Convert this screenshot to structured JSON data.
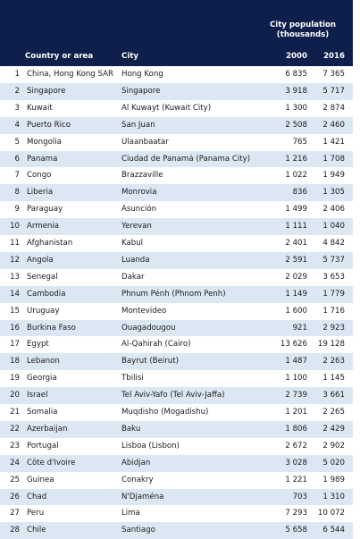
{
  "table": {
    "group_label": "City population (thousands)",
    "columns": [
      "Country or area",
      "City",
      "2000",
      "2016"
    ],
    "rows": [
      [
        "1",
        "China, Hong Kong SAR",
        "Hong Kong",
        "6 835",
        "7 365"
      ],
      [
        "2",
        "Singapore",
        "Singapore",
        "3 918",
        "5 717"
      ],
      [
        "3",
        "Kuwait",
        "Al Kuwayt (Kuwait City)",
        "1 300",
        "2 874"
      ],
      [
        "4",
        "Puerto Rico",
        "San Juan",
        "2 508",
        "2 460"
      ],
      [
        "5",
        "Mongolia",
        "Ulaanbaatar",
        "765",
        "1 421"
      ],
      [
        "6",
        "Panama",
        "Ciudad de Panamá (Panama City)",
        "1 216",
        "1 708"
      ],
      [
        "7",
        "Congo",
        "Brazzaville",
        "1 022",
        "1 949"
      ],
      [
        "8",
        "Liberia",
        "Monrovia",
        "836",
        "1 305"
      ],
      [
        "9",
        "Paraguay",
        "Asunción",
        "1 499",
        "2 406"
      ],
      [
        "10",
        "Armenia",
        "Yerevan",
        "1 111",
        "1 040"
      ],
      [
        "11",
        "Afghanistan",
        "Kabul",
        "2 401",
        "4 842"
      ],
      [
        "12",
        "Angola",
        "Luanda",
        "2 591",
        "5 737"
      ],
      [
        "13",
        "Senegal",
        "Dakar",
        "2 029",
        "3 653"
      ],
      [
        "14",
        "Cambodia",
        "Phnum Pénh (Phnom Penh)",
        "1 149",
        "1 779"
      ],
      [
        "15",
        "Uruguay",
        "Montevideo",
        "1 600",
        "1 716"
      ],
      [
        "16",
        "Burkina Faso",
        "Ouagadougou",
        "921",
        "2 923"
      ],
      [
        "17",
        "Egypt",
        "Al-Qahirah (Cairo)",
        "13 626",
        "19 128"
      ],
      [
        "18",
        "Lebanon",
        "Bayrut (Beirut)",
        "1 487",
        "2 263"
      ],
      [
        "19",
        "Georgia",
        "Tbilisi",
        "1 100",
        "1 145"
      ],
      [
        "20",
        "Israel",
        "Tel Aviv-Yafo (Tel Aviv-Jaffa)",
        "2 739",
        "3 661"
      ],
      [
        "21",
        "Somalia",
        "Muqdisho (Mogadishu)",
        "1 201",
        "2 265"
      ],
      [
        "22",
        "Azerbaijan",
        "Baku",
        "1 806",
        "2 429"
      ],
      [
        "23",
        "Portugal",
        "Lisboa (Lisbon)",
        "2 672",
        "2 902"
      ],
      [
        "24",
        "Côte d'Ivoire",
        "Abidjan",
        "3 028",
        "5 020"
      ],
      [
        "25",
        "Guinea",
        "Conakry",
        "1 221",
        "1 989"
      ],
      [
        "26",
        "Chad",
        "N'Djaména",
        "703",
        "1 310"
      ],
      [
        "27",
        "Peru",
        "Lima",
        "7 293",
        "10 072"
      ],
      [
        "28",
        "Chile",
        "Santiago",
        "5 658",
        "6 544"
      ]
    ]
  }
}
